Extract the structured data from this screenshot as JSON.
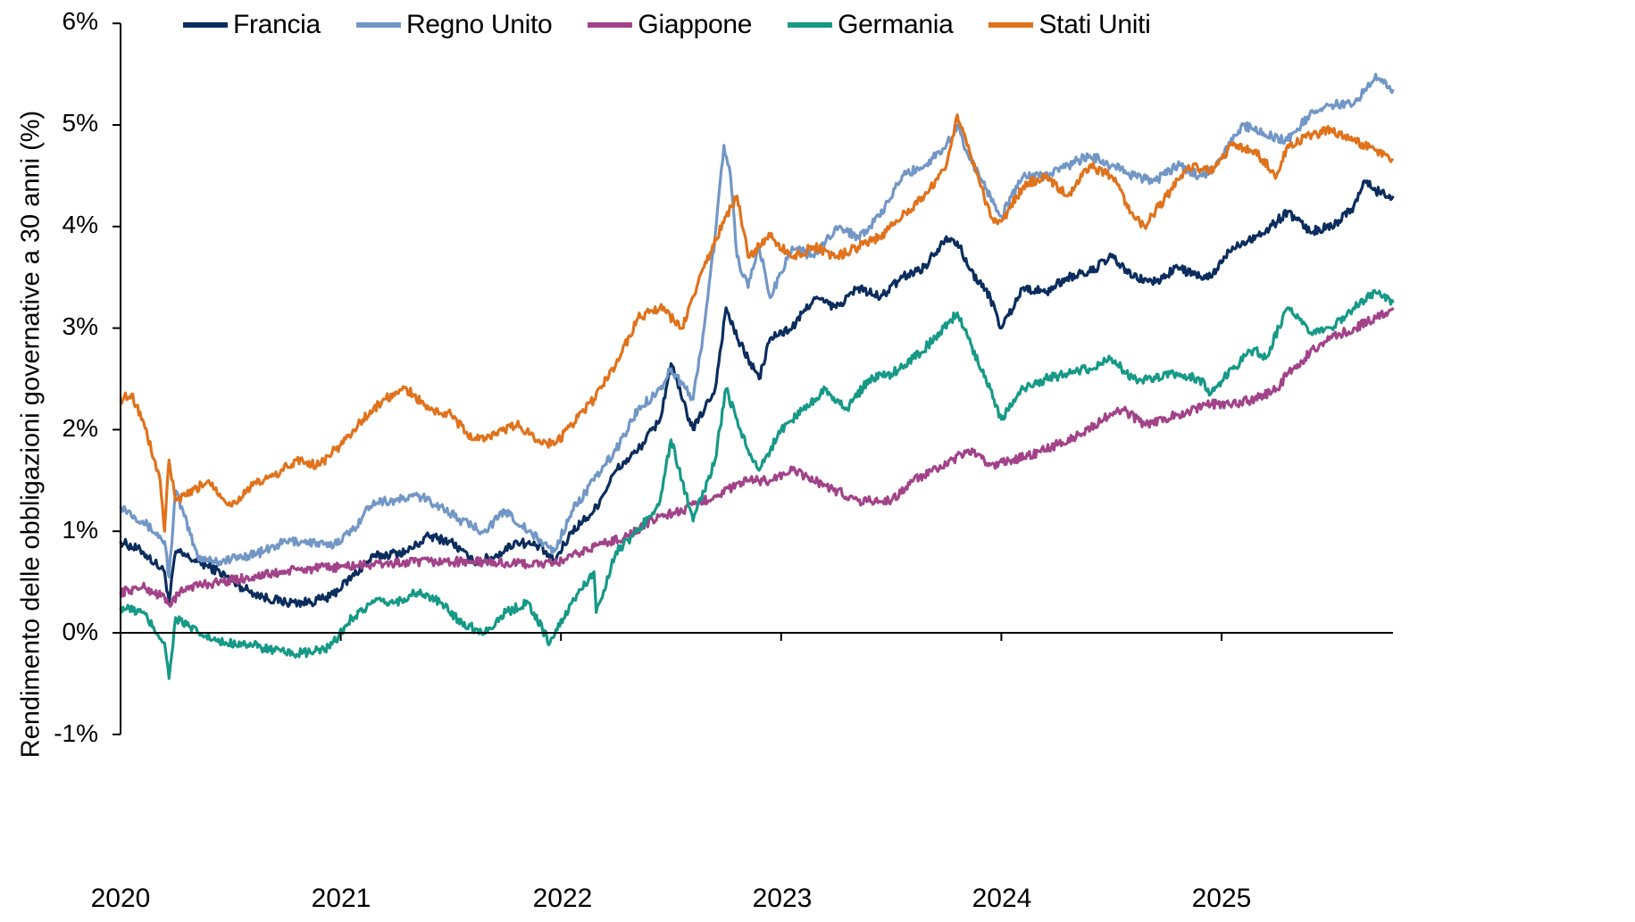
{
  "chart_data": {
    "type": "line",
    "title": "",
    "xlabel": "",
    "ylabel": "Rendimento delle obbligazioni governative a 30 anni (%)",
    "ylim": [
      -1,
      6
    ],
    "xlim": [
      2020.0,
      2025.78
    ],
    "y_ticks": [
      "-1%",
      "0%",
      "1%",
      "2%",
      "3%",
      "4%",
      "5%",
      "6%"
    ],
    "x_ticks": [
      "2020",
      "2021",
      "2022",
      "2023",
      "2024",
      "2025"
    ],
    "grid": false,
    "legend_position": "top",
    "zero_line": true,
    "series": [
      {
        "name": "Francia",
        "color": "#0b2d5e",
        "x": [
          2020.0,
          2020.1,
          2020.2,
          2020.22,
          2020.25,
          2020.35,
          2020.45,
          2020.55,
          2020.65,
          2020.75,
          2020.85,
          2020.95,
          2021.05,
          2021.15,
          2021.3,
          2021.4,
          2021.5,
          2021.6,
          2021.7,
          2021.8,
          2021.9,
          2021.97,
          2022.05,
          2022.15,
          2022.25,
          2022.35,
          2022.45,
          2022.5,
          2022.55,
          2022.6,
          2022.7,
          2022.75,
          2022.8,
          2022.9,
          2022.95,
          2023.05,
          2023.15,
          2023.25,
          2023.35,
          2023.45,
          2023.55,
          2023.65,
          2023.75,
          2023.8,
          2023.85,
          2023.95,
          2024.0,
          2024.1,
          2024.2,
          2024.3,
          2024.4,
          2024.5,
          2024.6,
          2024.7,
          2024.8,
          2024.9,
          2024.95,
          2025.05,
          2025.1,
          2025.2,
          2025.3,
          2025.4,
          2025.5,
          2025.6,
          2025.65,
          2025.7,
          2025.78
        ],
        "values": [
          0.9,
          0.8,
          0.6,
          0.3,
          0.8,
          0.7,
          0.6,
          0.45,
          0.35,
          0.3,
          0.3,
          0.35,
          0.55,
          0.75,
          0.8,
          0.95,
          0.9,
          0.7,
          0.75,
          0.9,
          0.85,
          0.7,
          1.0,
          1.2,
          1.6,
          1.8,
          2.1,
          2.65,
          2.3,
          2.0,
          2.4,
          3.2,
          2.9,
          2.5,
          2.9,
          3.0,
          3.3,
          3.2,
          3.4,
          3.3,
          3.5,
          3.6,
          3.9,
          3.85,
          3.6,
          3.3,
          3.0,
          3.4,
          3.35,
          3.5,
          3.55,
          3.7,
          3.5,
          3.45,
          3.6,
          3.5,
          3.5,
          3.8,
          3.85,
          3.95,
          4.15,
          3.95,
          4.0,
          4.2,
          4.45,
          4.35,
          4.3
        ]
      },
      {
        "name": "Regno Unito",
        "color": "#7297c6",
        "x": [
          2020.0,
          2020.1,
          2020.2,
          2020.22,
          2020.25,
          2020.35,
          2020.45,
          2020.55,
          2020.65,
          2020.75,
          2020.85,
          2020.95,
          2021.05,
          2021.15,
          2021.25,
          2021.35,
          2021.45,
          2021.55,
          2021.65,
          2021.75,
          2021.85,
          2021.97,
          2022.05,
          2022.15,
          2022.25,
          2022.35,
          2022.45,
          2022.5,
          2022.55,
          2022.6,
          2022.65,
          2022.7,
          2022.74,
          2022.77,
          2022.8,
          2022.85,
          2022.9,
          2022.95,
          2023.05,
          2023.15,
          2023.25,
          2023.35,
          2023.45,
          2023.55,
          2023.65,
          2023.75,
          2023.8,
          2023.85,
          2023.95,
          2024.0,
          2024.1,
          2024.2,
          2024.3,
          2024.4,
          2024.5,
          2024.6,
          2024.7,
          2024.8,
          2024.9,
          2024.95,
          2025.05,
          2025.1,
          2025.2,
          2025.3,
          2025.4,
          2025.5,
          2025.6,
          2025.7,
          2025.78
        ],
        "values": [
          1.25,
          1.1,
          0.9,
          0.55,
          1.4,
          0.75,
          0.7,
          0.75,
          0.8,
          0.9,
          0.9,
          0.85,
          1.0,
          1.3,
          1.3,
          1.35,
          1.25,
          1.1,
          1.0,
          1.2,
          1.0,
          0.8,
          1.2,
          1.5,
          1.8,
          2.2,
          2.4,
          2.6,
          2.45,
          2.3,
          3.0,
          3.9,
          4.8,
          4.5,
          3.7,
          3.4,
          3.8,
          3.3,
          3.8,
          3.7,
          4.0,
          3.9,
          4.1,
          4.5,
          4.6,
          4.8,
          5.0,
          4.7,
          4.3,
          4.1,
          4.5,
          4.5,
          4.6,
          4.7,
          4.6,
          4.5,
          4.45,
          4.6,
          4.5,
          4.55,
          4.85,
          5.0,
          4.9,
          4.85,
          5.1,
          5.2,
          5.2,
          5.5,
          5.35
        ]
      },
      {
        "name": "Giappone",
        "color": "#a2438a",
        "x": [
          2020.0,
          2020.1,
          2020.2,
          2020.22,
          2020.3,
          2020.45,
          2020.6,
          2020.8,
          2021.0,
          2021.2,
          2021.4,
          2021.6,
          2021.8,
          2021.97,
          2022.05,
          2022.15,
          2022.3,
          2022.45,
          2022.55,
          2022.7,
          2022.85,
          2022.95,
          2023.05,
          2023.2,
          2023.35,
          2023.5,
          2023.6,
          2023.75,
          2023.85,
          2023.95,
          2024.05,
          2024.2,
          2024.35,
          2024.5,
          2024.55,
          2024.65,
          2024.8,
          2024.95,
          2025.05,
          2025.15,
          2025.25,
          2025.3,
          2025.45,
          2025.6,
          2025.7,
          2025.78
        ],
        "values": [
          0.4,
          0.45,
          0.35,
          0.28,
          0.45,
          0.5,
          0.55,
          0.62,
          0.65,
          0.68,
          0.7,
          0.7,
          0.68,
          0.68,
          0.75,
          0.85,
          0.95,
          1.15,
          1.2,
          1.35,
          1.5,
          1.5,
          1.6,
          1.45,
          1.3,
          1.3,
          1.5,
          1.65,
          1.8,
          1.65,
          1.7,
          1.8,
          1.95,
          2.15,
          2.2,
          2.05,
          2.15,
          2.25,
          2.25,
          2.3,
          2.4,
          2.55,
          2.85,
          3.0,
          3.1,
          3.2
        ]
      },
      {
        "name": "Germania",
        "color": "#169987",
        "x": [
          2020.0,
          2020.1,
          2020.2,
          2020.22,
          2020.25,
          2020.35,
          2020.45,
          2020.55,
          2020.65,
          2020.75,
          2020.85,
          2020.95,
          2021.05,
          2021.15,
          2021.25,
          2021.35,
          2021.45,
          2021.55,
          2021.65,
          2021.75,
          2021.85,
          2021.95,
          2022.05,
          2022.15,
          2022.16,
          2022.25,
          2022.35,
          2022.45,
          2022.5,
          2022.55,
          2022.6,
          2022.7,
          2022.75,
          2022.8,
          2022.85,
          2022.9,
          2023.0,
          2023.1,
          2023.2,
          2023.3,
          2023.4,
          2023.5,
          2023.6,
          2023.7,
          2023.8,
          2023.85,
          2023.95,
          2024.0,
          2024.1,
          2024.2,
          2024.3,
          2024.4,
          2024.5,
          2024.6,
          2024.7,
          2024.8,
          2024.9,
          2024.95,
          2025.05,
          2025.15,
          2025.2,
          2025.3,
          2025.4,
          2025.5,
          2025.6,
          2025.7,
          2025.78
        ],
        "values": [
          0.25,
          0.2,
          -0.1,
          -0.45,
          0.15,
          0.0,
          -0.1,
          -0.1,
          -0.15,
          -0.2,
          -0.2,
          -0.15,
          0.15,
          0.3,
          0.3,
          0.4,
          0.3,
          0.1,
          0.0,
          0.2,
          0.3,
          -0.1,
          0.3,
          0.6,
          0.2,
          0.8,
          1.0,
          1.3,
          1.9,
          1.5,
          1.1,
          1.7,
          2.4,
          2.1,
          1.8,
          1.6,
          2.0,
          2.2,
          2.4,
          2.2,
          2.5,
          2.55,
          2.7,
          2.9,
          3.15,
          2.9,
          2.4,
          2.1,
          2.4,
          2.5,
          2.55,
          2.6,
          2.7,
          2.5,
          2.5,
          2.55,
          2.5,
          2.35,
          2.6,
          2.8,
          2.7,
          3.2,
          2.95,
          3.0,
          3.2,
          3.35,
          3.25
        ]
      },
      {
        "name": "Stati Uniti",
        "color": "#e0721c",
        "x": [
          2020.0,
          2020.05,
          2020.1,
          2020.18,
          2020.2,
          2020.22,
          2020.25,
          2020.3,
          2020.4,
          2020.5,
          2020.6,
          2020.7,
          2020.8,
          2020.9,
          2021.0,
          2021.1,
          2021.2,
          2021.3,
          2021.4,
          2021.5,
          2021.6,
          2021.7,
          2021.8,
          2021.9,
          2021.97,
          2022.05,
          2022.15,
          2022.25,
          2022.35,
          2022.45,
          2022.55,
          2022.65,
          2022.75,
          2022.8,
          2022.85,
          2022.95,
          2023.05,
          2023.15,
          2023.25,
          2023.35,
          2023.45,
          2023.55,
          2023.65,
          2023.75,
          2023.8,
          2023.85,
          2023.95,
          2024.0,
          2024.1,
          2024.2,
          2024.3,
          2024.4,
          2024.5,
          2024.6,
          2024.65,
          2024.75,
          2024.85,
          2024.95,
          2025.05,
          2025.15,
          2025.25,
          2025.3,
          2025.4,
          2025.5,
          2025.6,
          2025.7,
          2025.78
        ],
        "values": [
          2.3,
          2.35,
          2.1,
          1.5,
          1.0,
          1.7,
          1.3,
          1.35,
          1.5,
          1.25,
          1.45,
          1.55,
          1.7,
          1.65,
          1.85,
          2.1,
          2.3,
          2.4,
          2.2,
          2.15,
          1.9,
          1.95,
          2.05,
          1.9,
          1.85,
          2.05,
          2.3,
          2.65,
          3.1,
          3.2,
          3.0,
          3.6,
          4.1,
          4.3,
          3.7,
          3.9,
          3.7,
          3.8,
          3.7,
          3.8,
          3.9,
          4.1,
          4.3,
          4.6,
          5.1,
          4.8,
          4.1,
          4.05,
          4.4,
          4.5,
          4.3,
          4.6,
          4.5,
          4.1,
          4.0,
          4.3,
          4.6,
          4.55,
          4.8,
          4.75,
          4.5,
          4.8,
          4.9,
          4.95,
          4.85,
          4.75,
          4.65
        ]
      }
    ]
  },
  "legend": {
    "items": [
      {
        "label": "Francia",
        "color": "#0b2d5e"
      },
      {
        "label": "Regno Unito",
        "color": "#7297c6"
      },
      {
        "label": "Giappone",
        "color": "#a2438a"
      },
      {
        "label": "Germania",
        "color": "#169987"
      },
      {
        "label": "Stati Uniti",
        "color": "#e0721c"
      }
    ]
  },
  "axes": {
    "y_label": "Rendimento delle obbligazioni governative a 30 anni (%)",
    "y_ticks": [
      {
        "label": "6%",
        "value": 6
      },
      {
        "label": "5%",
        "value": 5
      },
      {
        "label": "4%",
        "value": 4
      },
      {
        "label": "3%",
        "value": 3
      },
      {
        "label": "2%",
        "value": 2
      },
      {
        "label": "1%",
        "value": 1
      },
      {
        "label": "0%",
        "value": 0
      },
      {
        "label": "-1%",
        "value": -1
      }
    ],
    "x_ticks": [
      {
        "label": "2020",
        "value": 2020
      },
      {
        "label": "2021",
        "value": 2021
      },
      {
        "label": "2022",
        "value": 2022
      },
      {
        "label": "2023",
        "value": 2023
      },
      {
        "label": "2024",
        "value": 2024
      },
      {
        "label": "2025",
        "value": 2025
      }
    ]
  }
}
